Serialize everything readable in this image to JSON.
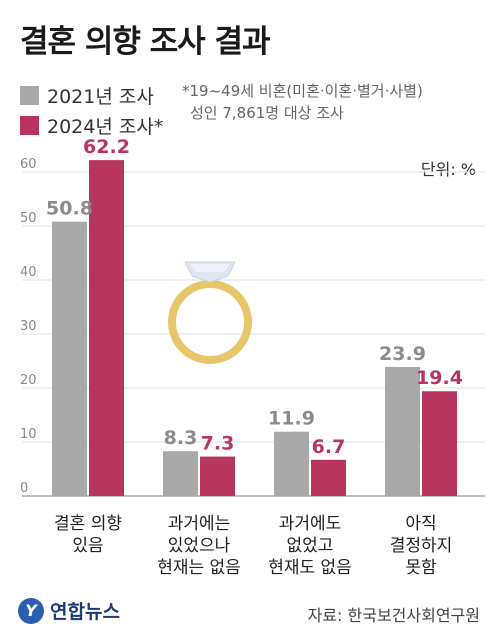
{
  "title": "결혼 의향 조사 결과",
  "legend": [
    {
      "label": "2021년 조사",
      "color": "#a9a9a9"
    },
    {
      "label": "2024년 조사*",
      "color": "#b8365d"
    }
  ],
  "note": [
    "*19~49세 비혼(미혼·이혼·별거·사별)",
    "성인 7,861명 대상 조사"
  ],
  "unit": "단위: %",
  "chart_data": {
    "type": "bar",
    "categories": [
      [
        "결혼 의향",
        "있음"
      ],
      [
        "과거에는",
        "있었으나",
        "현재는 없음"
      ],
      [
        "과거에도",
        "없었고",
        "현재도 없음"
      ],
      [
        "아직",
        "결정하지",
        "못함"
      ]
    ],
    "series": [
      {
        "name": "2021년 조사",
        "color": "#a9a9a9",
        "label_color": "#8c8c8c",
        "values": [
          50.8,
          8.3,
          11.9,
          23.9
        ]
      },
      {
        "name": "2024년 조사*",
        "color": "#b8365d",
        "label_color": "#b8365d",
        "values": [
          62.2,
          7.3,
          6.7,
          19.4
        ]
      }
    ],
    "yticks": [
      "0",
      "10",
      "20",
      "30",
      "40",
      "50",
      "60"
    ],
    "ylim": [
      0,
      60
    ],
    "grid": true
  },
  "footer": {
    "logo_text": "연합뉴스",
    "logo_mark": "Y",
    "source": "자료: 한국보건사회연구원"
  }
}
